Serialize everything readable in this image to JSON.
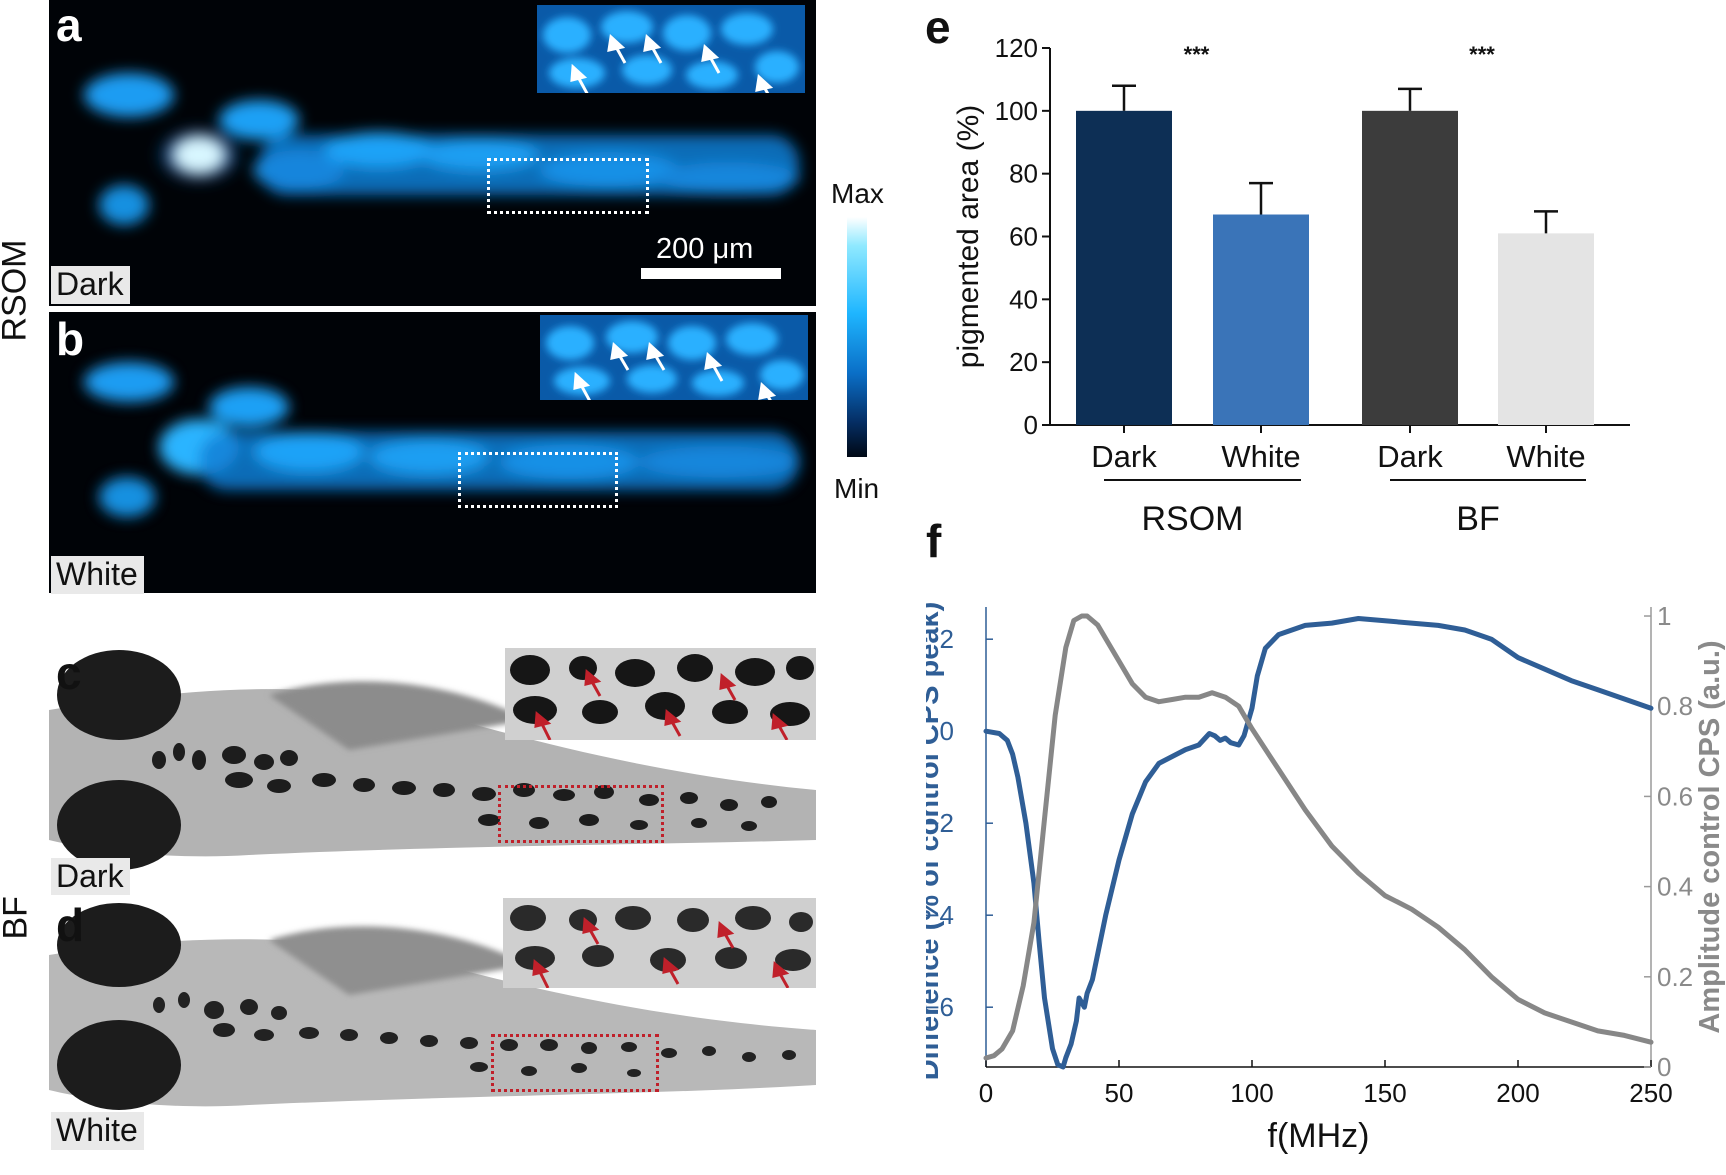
{
  "labels": {
    "panel_a": "a",
    "panel_b": "b",
    "panel_c": "c",
    "panel_d": "d",
    "panel_e": "e",
    "panel_f": "f",
    "row_rsom": "RSOM",
    "row_bf": "BF",
    "tag_a": "Dark",
    "tag_b": "White",
    "tag_c": "Dark",
    "tag_d": "White",
    "scale_bar": "200 μm",
    "colorbar_max": "Max",
    "colorbar_min": "Min"
  },
  "colors": {
    "rsom_signal": "#1fa8ff",
    "arrow_white": "#ffffff",
    "arrow_red": "#c0202a",
    "bar_rsom_dark": "#0d2f55",
    "bar_rsom_white": "#3a74b8",
    "bar_bf_dark": "#3c3c3c",
    "bar_bf_white": "#e4e4e4",
    "diff_line": "#2f5e96",
    "amp_line": "#878787"
  },
  "chart_data": [
    {
      "type": "bar",
      "panel": "e",
      "ylabel": "pigmented area (%)",
      "ylim": [
        0,
        120
      ],
      "yticks": [
        0,
        20,
        40,
        60,
        80,
        100,
        120
      ],
      "categories": [
        "Dark",
        "White",
        "Dark",
        "White"
      ],
      "groups": [
        {
          "name": "RSOM",
          "categories": [
            "Dark",
            "White"
          ],
          "significance": "***"
        },
        {
          "name": "BF",
          "categories": [
            "Dark",
            "White"
          ],
          "significance": "***"
        }
      ],
      "values": [
        100,
        67,
        100,
        61
      ],
      "errors": [
        8,
        10,
        7,
        7
      ]
    },
    {
      "type": "line",
      "panel": "f",
      "xlabel": "f(MHz)",
      "xlim": [
        0,
        250
      ],
      "xticks": [
        0,
        50,
        100,
        150,
        200,
        250
      ],
      "ylabel_left": "Difference (% of control CPS peak)",
      "ylim_left": [
        -7.3,
        2.7
      ],
      "yticks_left": [
        2,
        0,
        -2,
        -4,
        -6
      ],
      "ytick_labels_left": [
        "2",
        "0",
        "−2",
        "−4",
        "−6"
      ],
      "ylabel_right": "Amplitude control CPS (a.u.)",
      "ylim_right": [
        0,
        1.02
      ],
      "yticks_right": [
        0,
        0.2,
        0.4,
        0.6,
        0.8,
        1
      ],
      "ytick_labels_right": [
        "0",
        "0.2",
        "0.4",
        "0.6",
        "0.8",
        "1"
      ],
      "series": [
        {
          "axis": "left",
          "x": [
            0,
            5,
            8,
            10,
            12,
            15,
            18,
            20,
            22,
            25,
            27,
            29,
            30,
            32,
            34,
            35,
            37,
            38,
            40,
            45,
            50,
            55,
            60,
            65,
            70,
            75,
            80,
            84,
            86,
            88,
            90,
            92,
            95,
            97,
            100,
            102,
            105,
            110,
            115,
            120,
            130,
            140,
            150,
            160,
            170,
            180,
            190,
            200,
            210,
            220,
            230,
            240,
            250
          ],
          "y": [
            0,
            -0.05,
            -0.2,
            -0.5,
            -1.0,
            -2.0,
            -3.3,
            -4.6,
            -5.8,
            -6.9,
            -7.25,
            -7.3,
            -7.1,
            -6.8,
            -6.3,
            -5.8,
            -6.0,
            -5.7,
            -5.4,
            -4.0,
            -2.8,
            -1.8,
            -1.1,
            -0.7,
            -0.55,
            -0.4,
            -0.3,
            -0.05,
            -0.1,
            -0.2,
            -0.15,
            -0.25,
            -0.3,
            -0.1,
            0.5,
            1.2,
            1.8,
            2.1,
            2.2,
            2.3,
            2.35,
            2.45,
            2.4,
            2.35,
            2.3,
            2.2,
            2.0,
            1.6,
            1.35,
            1.1,
            0.9,
            0.7,
            0.5
          ]
        },
        {
          "axis": "right",
          "x": [
            0,
            3,
            6,
            10,
            14,
            18,
            22,
            26,
            30,
            33,
            36,
            38,
            40,
            42,
            45,
            50,
            55,
            60,
            65,
            70,
            75,
            80,
            85,
            90,
            95,
            100,
            110,
            120,
            130,
            140,
            150,
            160,
            170,
            180,
            190,
            200,
            210,
            220,
            230,
            240,
            250
          ],
          "y": [
            0.02,
            0.025,
            0.04,
            0.08,
            0.18,
            0.32,
            0.55,
            0.78,
            0.93,
            0.99,
            1.0,
            1.0,
            0.99,
            0.98,
            0.95,
            0.9,
            0.85,
            0.82,
            0.81,
            0.815,
            0.82,
            0.82,
            0.83,
            0.82,
            0.8,
            0.75,
            0.66,
            0.57,
            0.49,
            0.43,
            0.38,
            0.35,
            0.31,
            0.26,
            0.2,
            0.15,
            0.12,
            0.1,
            0.08,
            0.07,
            0.055
          ]
        }
      ]
    }
  ]
}
